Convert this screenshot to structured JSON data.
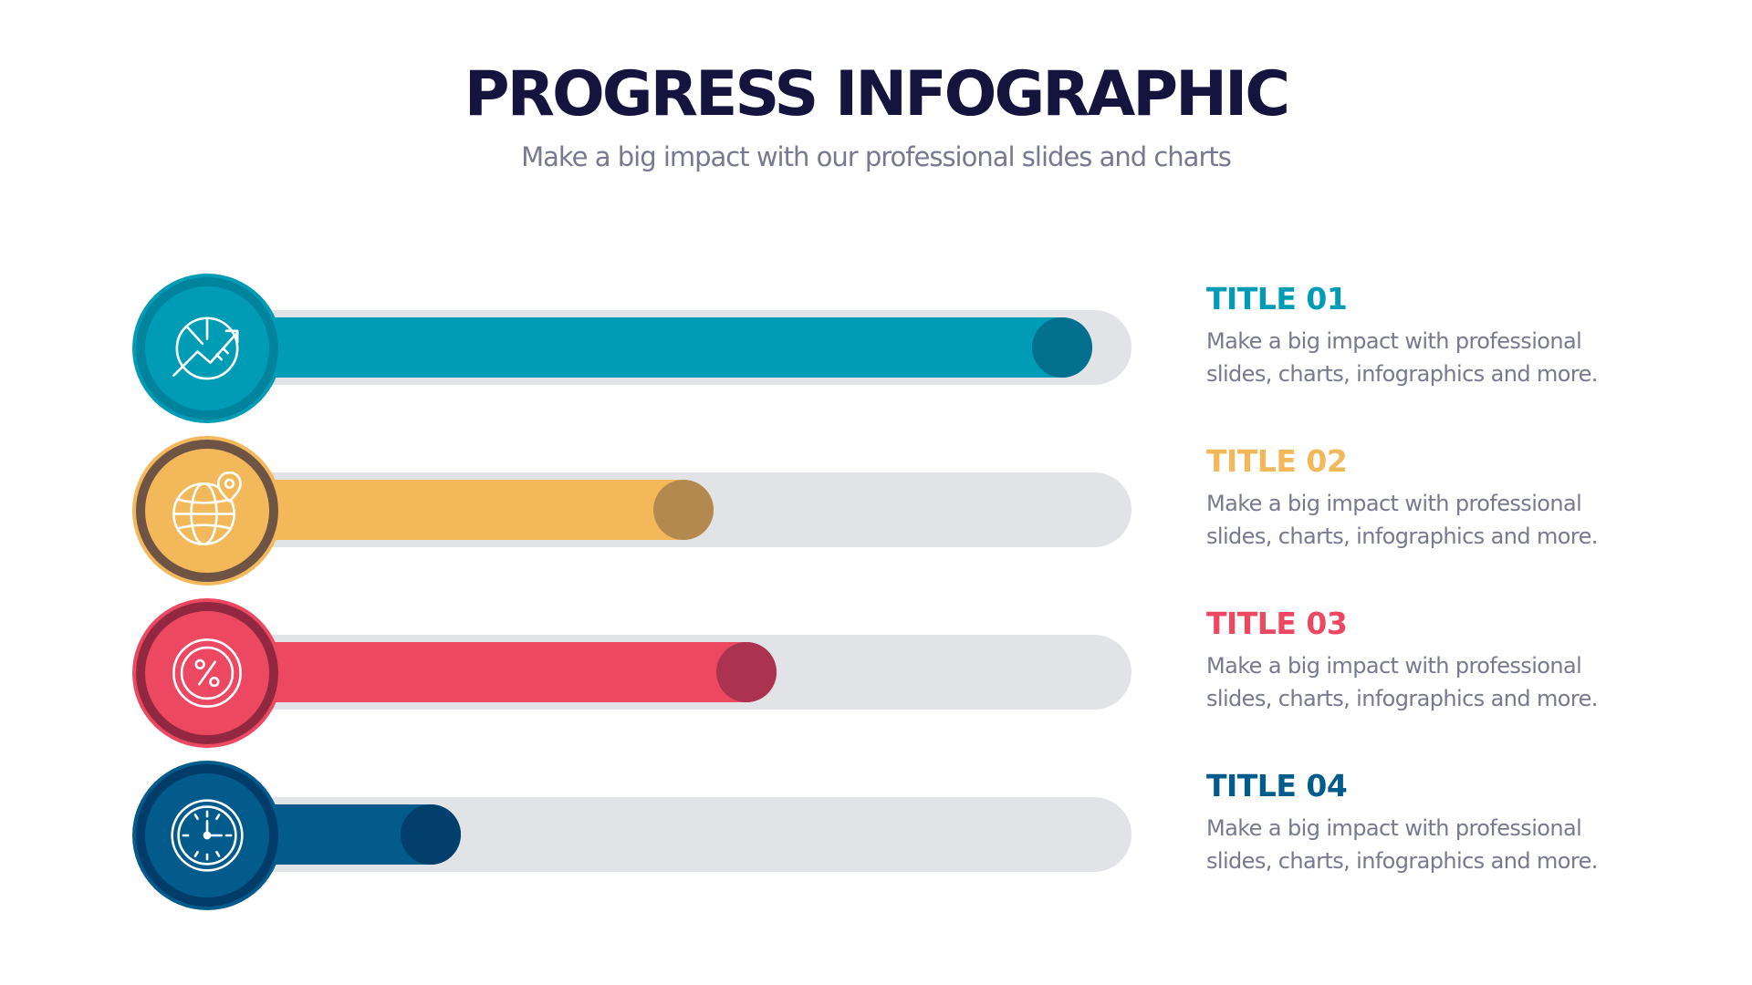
{
  "header": {
    "title": "PROGRESS INFOGRAPHIC",
    "subtitle": "Make a big impact with our professional slides and charts"
  },
  "items": [
    {
      "title": "TITLE 01",
      "description_line1": "Make a big impact with professional",
      "description_line2": "slides, charts, infographics and more.",
      "progress": 0.96,
      "icon": "pie-chart-growth-icon",
      "color": "#009cb6",
      "dark_color": "#04708f",
      "ring_color": "#00839d"
    },
    {
      "title": "TITLE 02",
      "description_line1": "Make a big impact with professional",
      "description_line2": "slides, charts, infographics and more.",
      "progress": 0.48,
      "icon": "globe-location-icon",
      "color": "#f3b85a",
      "dark_color": "#b3894f",
      "ring_color": "#6f5446"
    },
    {
      "title": "TITLE 03",
      "description_line1": "Make a big impact with professional",
      "description_line2": "slides, charts, infographics and more.",
      "progress": 0.56,
      "icon": "percent-gauge-icon",
      "color": "#ed4862",
      "dark_color": "#ab3350",
      "ring_color": "#92283f"
    },
    {
      "title": "TITLE 04",
      "description_line1": "Make a big impact with professional",
      "description_line2": "slides, charts, infographics and more.",
      "progress": 0.16,
      "icon": "clock-icon",
      "color": "#025b8a",
      "dark_color": "#023f6d",
      "ring_color": "#023c6a"
    }
  ]
}
